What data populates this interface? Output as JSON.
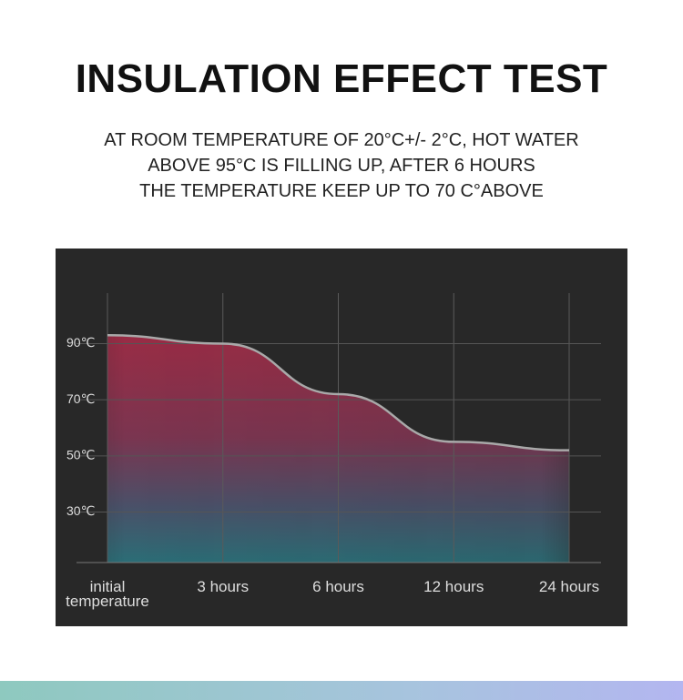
{
  "header": {
    "title": "INSULATION EFFECT TEST",
    "subtitle": [
      "AT ROOM TEMPERATURE OF 20°C+/- 2°C, HOT WATER",
      "ABOVE 95°C IS FILLING UP, AFTER 6 HOURS",
      "THE TEMPERATURE KEEP UP TO 70 C°ABOVE"
    ]
  },
  "chart_data": {
    "type": "area",
    "categories": [
      "initial\ntemperature",
      "3 hours",
      "6 hours",
      "12 hours",
      "24 hours"
    ],
    "values": [
      93,
      90,
      72,
      55,
      52
    ],
    "color": "#a9a9a9",
    "ylim": [
      12,
      108
    ],
    "yticks": [
      {
        "value": 30,
        "label": "30℃"
      },
      {
        "value": 50,
        "label": "50℃"
      },
      {
        "value": 70,
        "label": "70℃"
      },
      {
        "value": 90,
        "label": "90℃"
      }
    ],
    "grid": true
  }
}
